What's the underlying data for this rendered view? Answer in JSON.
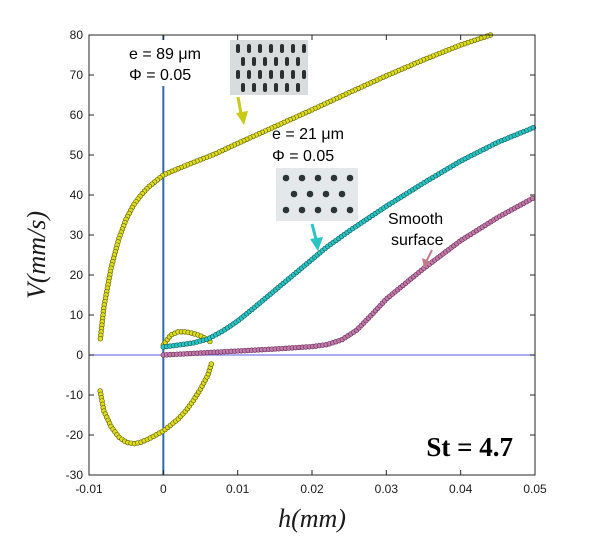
{
  "chart_data": {
    "type": "scatter",
    "title": "",
    "xlabel": "h(mm)",
    "ylabel": "V(mm/s)",
    "xlim": [
      -0.01,
      0.05
    ],
    "ylim": [
      -30,
      80
    ],
    "x_ticks": [
      -0.01,
      0,
      0.01,
      0.02,
      0.03,
      0.04,
      0.05
    ],
    "x_tick_labels": [
      "-0.01",
      "0",
      "0.01",
      "0.02",
      "0.03",
      "0.04",
      "0.05"
    ],
    "y_ticks": [
      -30,
      -20,
      -10,
      0,
      10,
      20,
      30,
      40,
      50,
      60,
      70,
      80
    ],
    "y_tick_labels": [
      "-30",
      "-20",
      "-10",
      "0",
      "10",
      "20",
      "30",
      "40",
      "50",
      "60",
      "70",
      "80"
    ],
    "grid": false,
    "reference_lines": [
      {
        "orientation": "horizontal",
        "value": 0,
        "color": "#7b7bea"
      },
      {
        "orientation": "vertical",
        "value": 0,
        "color": "#2b6cb0"
      }
    ],
    "series": [
      {
        "color": "#dede1e",
        "edge": "#5a5a00",
        "branches": [
          [
            [
              0.044,
              80
            ],
            [
              0.04,
              77.5
            ],
            [
              0.035,
              73.8
            ],
            [
              0.03,
              69.8
            ],
            [
              0.025,
              65.6
            ],
            [
              0.02,
              61.3
            ],
            [
              0.015,
              57.1
            ],
            [
              0.01,
              52.9
            ],
            [
              0.007,
              50.3
            ],
            [
              0.004,
              48.1
            ],
            [
              0.002,
              46.6
            ],
            [
              0.0,
              45
            ],
            [
              -0.001,
              43.5
            ],
            [
              -0.002,
              42
            ],
            [
              -0.003,
              40
            ],
            [
              -0.004,
              37.5
            ],
            [
              -0.005,
              34
            ],
            [
              -0.006,
              29
            ],
            [
              -0.007,
              22
            ],
            [
              -0.0075,
              17
            ],
            [
              -0.008,
              12
            ],
            [
              -0.0085,
              3.5
            ]
          ],
          [
            [
              -0.0085,
              -9
            ],
            [
              -0.008,
              -14
            ],
            [
              -0.007,
              -18
            ],
            [
              -0.006,
              -20.5
            ],
            [
              -0.005,
              -21.8
            ],
            [
              -0.004,
              -22.2
            ],
            [
              -0.003,
              -21.8
            ],
            [
              -0.002,
              -21
            ],
            [
              -0.001,
              -20
            ],
            [
              0.0,
              -19
            ],
            [
              0.001,
              -17.5
            ],
            [
              0.002,
              -16
            ],
            [
              0.003,
              -14
            ],
            [
              0.004,
              -11.5
            ],
            [
              0.005,
              -8.5
            ],
            [
              0.006,
              -5
            ],
            [
              0.0065,
              -2
            ]
          ],
          [
            [
              0.0,
              2.5
            ],
            [
              0.001,
              5
            ],
            [
              0.002,
              5.8
            ],
            [
              0.003,
              5.8
            ],
            [
              0.004,
              5.4
            ],
            [
              0.005,
              4.8
            ],
            [
              0.006,
              3.8
            ],
            [
              0.0065,
              3
            ]
          ]
        ]
      },
      {
        "color": "#2bc4c4",
        "edge": "#0d5c5c",
        "branches": [
          [
            [
              0.0,
              2
            ],
            [
              0.002,
              2.5
            ],
            [
              0.004,
              3
            ],
            [
              0.006,
              4
            ],
            [
              0.008,
              6
            ],
            [
              0.01,
              8.5
            ],
            [
              0.012,
              11.5
            ],
            [
              0.014,
              14.6
            ],
            [
              0.016,
              17.7
            ],
            [
              0.018,
              20.8
            ],
            [
              0.02,
              23.9
            ],
            [
              0.022,
              27
            ],
            [
              0.025,
              31
            ],
            [
              0.03,
              37.2
            ],
            [
              0.035,
              43
            ],
            [
              0.04,
              48.5
            ],
            [
              0.045,
              53.2
            ],
            [
              0.05,
              57
            ]
          ]
        ]
      },
      {
        "color": "#c07aa8",
        "edge": "#6a2a5a",
        "branches": [
          [
            [
              0.0,
              0
            ],
            [
              0.005,
              0.5
            ],
            [
              0.01,
              1
            ],
            [
              0.015,
              1.5
            ],
            [
              0.02,
              2.1
            ],
            [
              0.022,
              2.6
            ],
            [
              0.024,
              3.8
            ],
            [
              0.026,
              6.2
            ],
            [
              0.028,
              10
            ],
            [
              0.03,
              14
            ],
            [
              0.035,
              21.6
            ],
            [
              0.04,
              28.6
            ],
            [
              0.045,
              34.4
            ],
            [
              0.05,
              39.5
            ]
          ]
        ]
      }
    ],
    "annotations": [
      {
        "lines": [
          "e = 89 μm",
          "Φ = 0.05"
        ],
        "arrow_color": "#c9c918"
      },
      {
        "lines": [
          "e = 21 μm",
          "Φ = 0.05"
        ],
        "arrow_color": "#2bc4c4"
      },
      {
        "lines": [
          "Smooth",
          "surface"
        ],
        "arrow_color": "#c07a8a"
      }
    ],
    "corner_label": "St = 4.7",
    "insets": [
      {
        "name": "pillar-array-photo",
        "pattern": "elongated-pillars"
      },
      {
        "name": "pillar-array-photo",
        "pattern": "round-pillars"
      }
    ]
  }
}
